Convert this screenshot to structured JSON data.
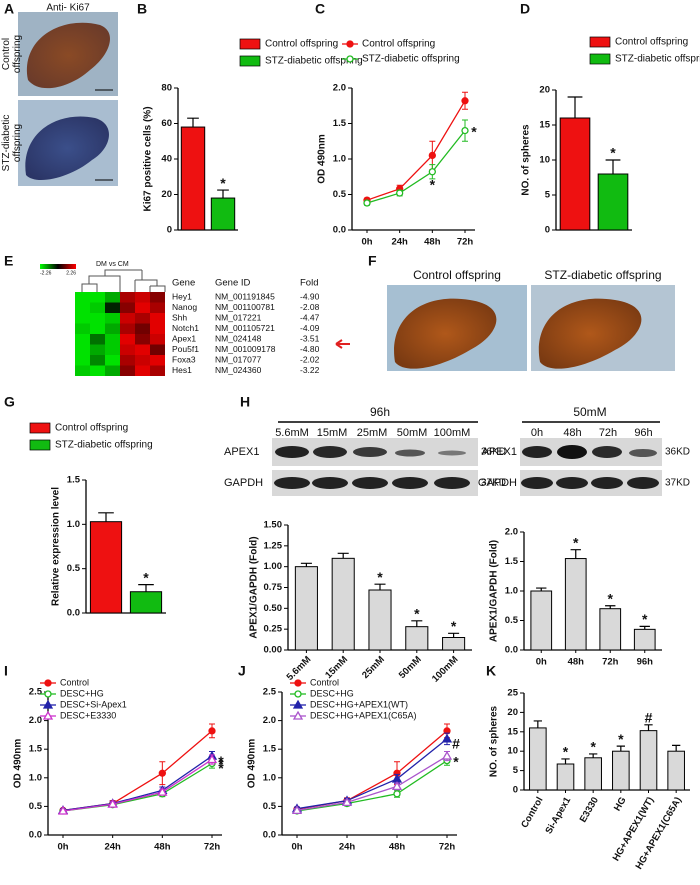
{
  "panel_labels": [
    "A",
    "B",
    "C",
    "D",
    "E",
    "F",
    "G",
    "H",
    "I",
    "J",
    "K"
  ],
  "panel_a": {
    "title": "Anti- Ki67",
    "row_labels": [
      [
        "Control",
        "offspring"
      ],
      [
        "STZ-diabetic",
        "offspring"
      ]
    ]
  },
  "heatmap": {
    "title": "DM vs CM",
    "scale": [
      -2.26,
      2.26
    ],
    "headers": [
      "Gene",
      "Gene ID",
      "Fold"
    ],
    "rows": [
      [
        "Hey1",
        "NM_001191845",
        "-4.90"
      ],
      [
        "Nanog",
        "NM_001100781",
        "-2.08"
      ],
      [
        "Shh",
        "NM_017221",
        "-4.47"
      ],
      [
        "Notch1",
        "NM_001105721",
        "-4.09"
      ],
      [
        "Apex1",
        "NM_024148",
        "-3.51"
      ],
      [
        "Pou5f1",
        "NM_001009178",
        "-4.80"
      ],
      [
        "Foxa3",
        "NM_017077",
        "-2.02"
      ],
      [
        "Hes1",
        "NM_024360",
        "-3.22"
      ]
    ],
    "values": [
      [
        -2,
        -2,
        -1.5,
        1.5,
        1.8,
        1.2
      ],
      [
        -2,
        -1.8,
        -0.3,
        1.2,
        2,
        1.5
      ],
      [
        -2,
        -2,
        -1.8,
        1.8,
        1.5,
        2
      ],
      [
        -1.8,
        -2,
        -1.5,
        1.5,
        1,
        2
      ],
      [
        -2,
        -1,
        -1.8,
        2,
        1.2,
        1.8
      ],
      [
        -2,
        -1.5,
        -1.8,
        1.8,
        2,
        1
      ],
      [
        -2,
        -1.2,
        -2,
        1.5,
        1.8,
        2
      ],
      [
        -1.8,
        -2,
        -1.5,
        1.2,
        2,
        1.5
      ]
    ]
  },
  "panel_f": {
    "labels": [
      "Control offspring",
      "STZ-diabetic offspring"
    ]
  },
  "blots": {
    "left": {
      "title": "96h",
      "lanes": [
        "5.6mM",
        "15mM",
        "25mM",
        "50mM",
        "100mM"
      ]
    },
    "right": {
      "title": "50mM",
      "lanes": [
        "0h",
        "48h",
        "72h",
        "96h"
      ]
    },
    "proteins": [
      "APEX1",
      "GAPDH"
    ],
    "sizes": [
      "36KD",
      "37KD"
    ]
  },
  "chart_data": [
    {
      "type": "bar",
      "ylabel": "Ki67 positive cells (%)",
      "ylim": [
        0,
        80
      ],
      "yticks": [
        0,
        20,
        40,
        60,
        80
      ],
      "series": [
        {
          "name": "Control offspring",
          "color": "#ee1111",
          "values": [
            58
          ],
          "errors": [
            5
          ]
        },
        {
          "name": "STZ-diabetic offspring",
          "color": "#11bb11",
          "values": [
            18
          ],
          "errors": [
            4.5
          ],
          "annotations": [
            "*"
          ]
        }
      ]
    },
    {
      "type": "line",
      "ylabel": "OD 490nm",
      "categories": [
        "0h",
        "24h",
        "48h",
        "72h"
      ],
      "ylim": [
        0,
        2
      ],
      "yticks": [
        {
          "value": 0,
          "label": "0.0"
        },
        0.5,
        {
          "value": 1,
          "label": "1.0"
        },
        1.5,
        {
          "value": 2,
          "label": "2.0"
        }
      ],
      "series": [
        {
          "name": "Control offspring",
          "color": "#ee1111",
          "marker": "circle",
          "filled": true,
          "values": [
            0.42,
            0.58,
            1.05,
            1.82
          ],
          "errors": [
            0.03,
            0.05,
            0.2,
            0.12
          ]
        },
        {
          "name": "STZ-diabetic offspring",
          "color": "#22bb22",
          "marker": "circle",
          "filled": false,
          "values": [
            0.38,
            0.52,
            0.82,
            1.4
          ],
          "errors": [
            0.03,
            0.04,
            0.1,
            0.15
          ],
          "annotations": [
            null,
            null,
            "*",
            "*"
          ]
        }
      ]
    },
    {
      "type": "bar",
      "ylabel": "NO. of spheres",
      "ylim": [
        0,
        20
      ],
      "yticks": [
        0,
        5,
        10,
        15,
        20
      ],
      "series": [
        {
          "name": "Control offspring",
          "color": "#ee1111",
          "values": [
            16
          ],
          "errors": [
            3
          ]
        },
        {
          "name": "STZ-diabetic offspring",
          "color": "#11bb11",
          "values": [
            8
          ],
          "errors": [
            2
          ],
          "annotations": [
            "*"
          ]
        }
      ]
    },
    {
      "type": "bar",
      "ylabel": "Relative expression level",
      "ylim": [
        0,
        1.5
      ],
      "yticks": [
        {
          "value": 0,
          "label": "0.0"
        },
        0.5,
        {
          "value": 1,
          "label": "1.0"
        },
        1.5
      ],
      "series": [
        {
          "name": "Control offspring",
          "color": "#ee1111",
          "values": [
            1.03
          ],
          "errors": [
            0.1
          ]
        },
        {
          "name": "STZ-diabetic offspring",
          "color": "#11bb11",
          "values": [
            0.24
          ],
          "errors": [
            0.08
          ],
          "annotations": [
            "*"
          ]
        }
      ]
    },
    {
      "type": "bar",
      "ylabel": "APEX1/GAPDH (Fold)",
      "categories": [
        "5.6mM",
        "15mM",
        "25mM",
        "50mM",
        "100mM"
      ],
      "xtick_rotation": -45,
      "color": "#d9d9d9",
      "values": [
        1.0,
        1.1,
        0.72,
        0.28,
        0.15
      ],
      "errors": [
        0.04,
        0.06,
        0.07,
        0.07,
        0.05
      ],
      "annotations": [
        null,
        null,
        "*",
        "*",
        "*"
      ],
      "ylim": [
        0,
        1.5
      ],
      "yticks": [
        {
          "value": 0,
          "label": "0.00"
        },
        0.25,
        {
          "value": 0.5,
          "label": "0.50"
        },
        0.75,
        {
          "value": 1,
          "label": "1.00"
        },
        1.25,
        {
          "value": 1.5,
          "label": "1.50"
        }
      ]
    },
    {
      "type": "bar",
      "ylabel": "APEX1/GAPDH (Fold)",
      "categories": [
        "0h",
        "48h",
        "72h",
        "96h"
      ],
      "color": "#d9d9d9",
      "values": [
        1.0,
        1.55,
        0.7,
        0.35
      ],
      "errors": [
        0.05,
        0.15,
        0.05,
        0.05
      ],
      "annotations": [
        null,
        "*",
        "*",
        "*"
      ],
      "ylim": [
        0,
        2
      ],
      "yticks": [
        {
          "value": 0,
          "label": "0.0"
        },
        0.5,
        {
          "value": 1,
          "label": "1.0"
        },
        1.5,
        {
          "value": 2,
          "label": "2.0"
        }
      ]
    },
    {
      "type": "line",
      "ylabel": "OD 490nm",
      "categories": [
        "0h",
        "24h",
        "48h",
        "72h"
      ],
      "ylim": [
        0,
        2.5
      ],
      "yticks": [
        {
          "value": 0,
          "label": "0.0"
        },
        0.5,
        {
          "value": 1,
          "label": "1.0"
        },
        1.5,
        {
          "value": 2,
          "label": "2.0"
        },
        2.5
      ],
      "series": [
        {
          "name": "Control",
          "color": "#ee1111",
          "marker": "circle",
          "filled": true,
          "values": [
            0.43,
            0.55,
            1.08,
            1.82
          ],
          "errors": [
            0.03,
            0.05,
            0.2,
            0.12
          ]
        },
        {
          "name": "DESC+HG",
          "color": "#22bb22",
          "marker": "circle",
          "filled": false,
          "values": [
            0.42,
            0.53,
            0.72,
            1.25
          ],
          "errors": [
            0.03,
            0.04,
            0.05,
            0.08
          ],
          "annotations": [
            null,
            null,
            null,
            "*"
          ]
        },
        {
          "name": "DESC+Si-Apex1",
          "color": "#2222aa",
          "marker": "triangle",
          "filled": true,
          "values": [
            0.43,
            0.55,
            0.78,
            1.38
          ],
          "errors": [
            0.03,
            0.04,
            0.06,
            0.08
          ],
          "annotations": [
            null,
            null,
            null,
            "*"
          ]
        },
        {
          "name": "DESC+E3330",
          "color": "#cc33cc",
          "marker": "triangle",
          "filled": false,
          "values": [
            0.42,
            0.54,
            0.75,
            1.32
          ],
          "errors": [
            0.03,
            0.04,
            0.05,
            0.08
          ],
          "annotations": [
            null,
            null,
            null,
            "*"
          ]
        }
      ]
    },
    {
      "type": "line",
      "ylabel": "OD 490nm",
      "categories": [
        "0h",
        "24h",
        "48h",
        "72h"
      ],
      "ylim": [
        0,
        2.5
      ],
      "yticks": [
        {
          "value": 0,
          "label": "0.0"
        },
        0.5,
        {
          "value": 1,
          "label": "1.0"
        },
        1.5,
        {
          "value": 2,
          "label": "2.0"
        },
        2.5
      ],
      "series": [
        {
          "name": "Control",
          "color": "#ee1111",
          "marker": "circle",
          "filled": true,
          "values": [
            0.45,
            0.6,
            1.08,
            1.82
          ],
          "errors": [
            0.03,
            0.05,
            0.2,
            0.12
          ]
        },
        {
          "name": "DESC+HG",
          "color": "#22bb22",
          "marker": "circle",
          "filled": false,
          "values": [
            0.42,
            0.55,
            0.72,
            1.3
          ],
          "errors": [
            0.03,
            0.04,
            0.06,
            0.08
          ],
          "annotations": [
            null,
            null,
            null,
            "*"
          ]
        },
        {
          "name": "DESC+HG+APEX1(WT)",
          "color": "#2222aa",
          "marker": "triangle",
          "filled": true,
          "values": [
            0.46,
            0.6,
            0.98,
            1.68
          ],
          "errors": [
            0.03,
            0.04,
            0.08,
            0.1
          ],
          "annotations": [
            null,
            null,
            null,
            "#"
          ]
        },
        {
          "name": "DESC+HG+APEX1(C65A)",
          "color": "#aa55cc",
          "marker": "triangle",
          "filled": false,
          "values": [
            0.43,
            0.57,
            0.85,
            1.38
          ],
          "errors": [
            0.03,
            0.04,
            0.06,
            0.08
          ]
        }
      ]
    },
    {
      "type": "bar",
      "ylabel": "NO. of spheres",
      "categories": [
        "Control",
        "Si-Apex1",
        "E3330",
        "HG",
        "HG+APEX1(WT)",
        "HG+APEX1(C65A)"
      ],
      "xtick_rotation": -60,
      "color": "#d9d9d9",
      "values": [
        16,
        6.7,
        8.3,
        10,
        15.3,
        10
      ],
      "errors": [
        1.8,
        1.3,
        1,
        1.3,
        1.5,
        1.5
      ],
      "annotations": [
        null,
        "*",
        "*",
        "*",
        "#",
        null
      ],
      "ylim": [
        0,
        25
      ],
      "yticks": [
        0,
        5,
        10,
        15,
        20,
        25
      ]
    }
  ]
}
